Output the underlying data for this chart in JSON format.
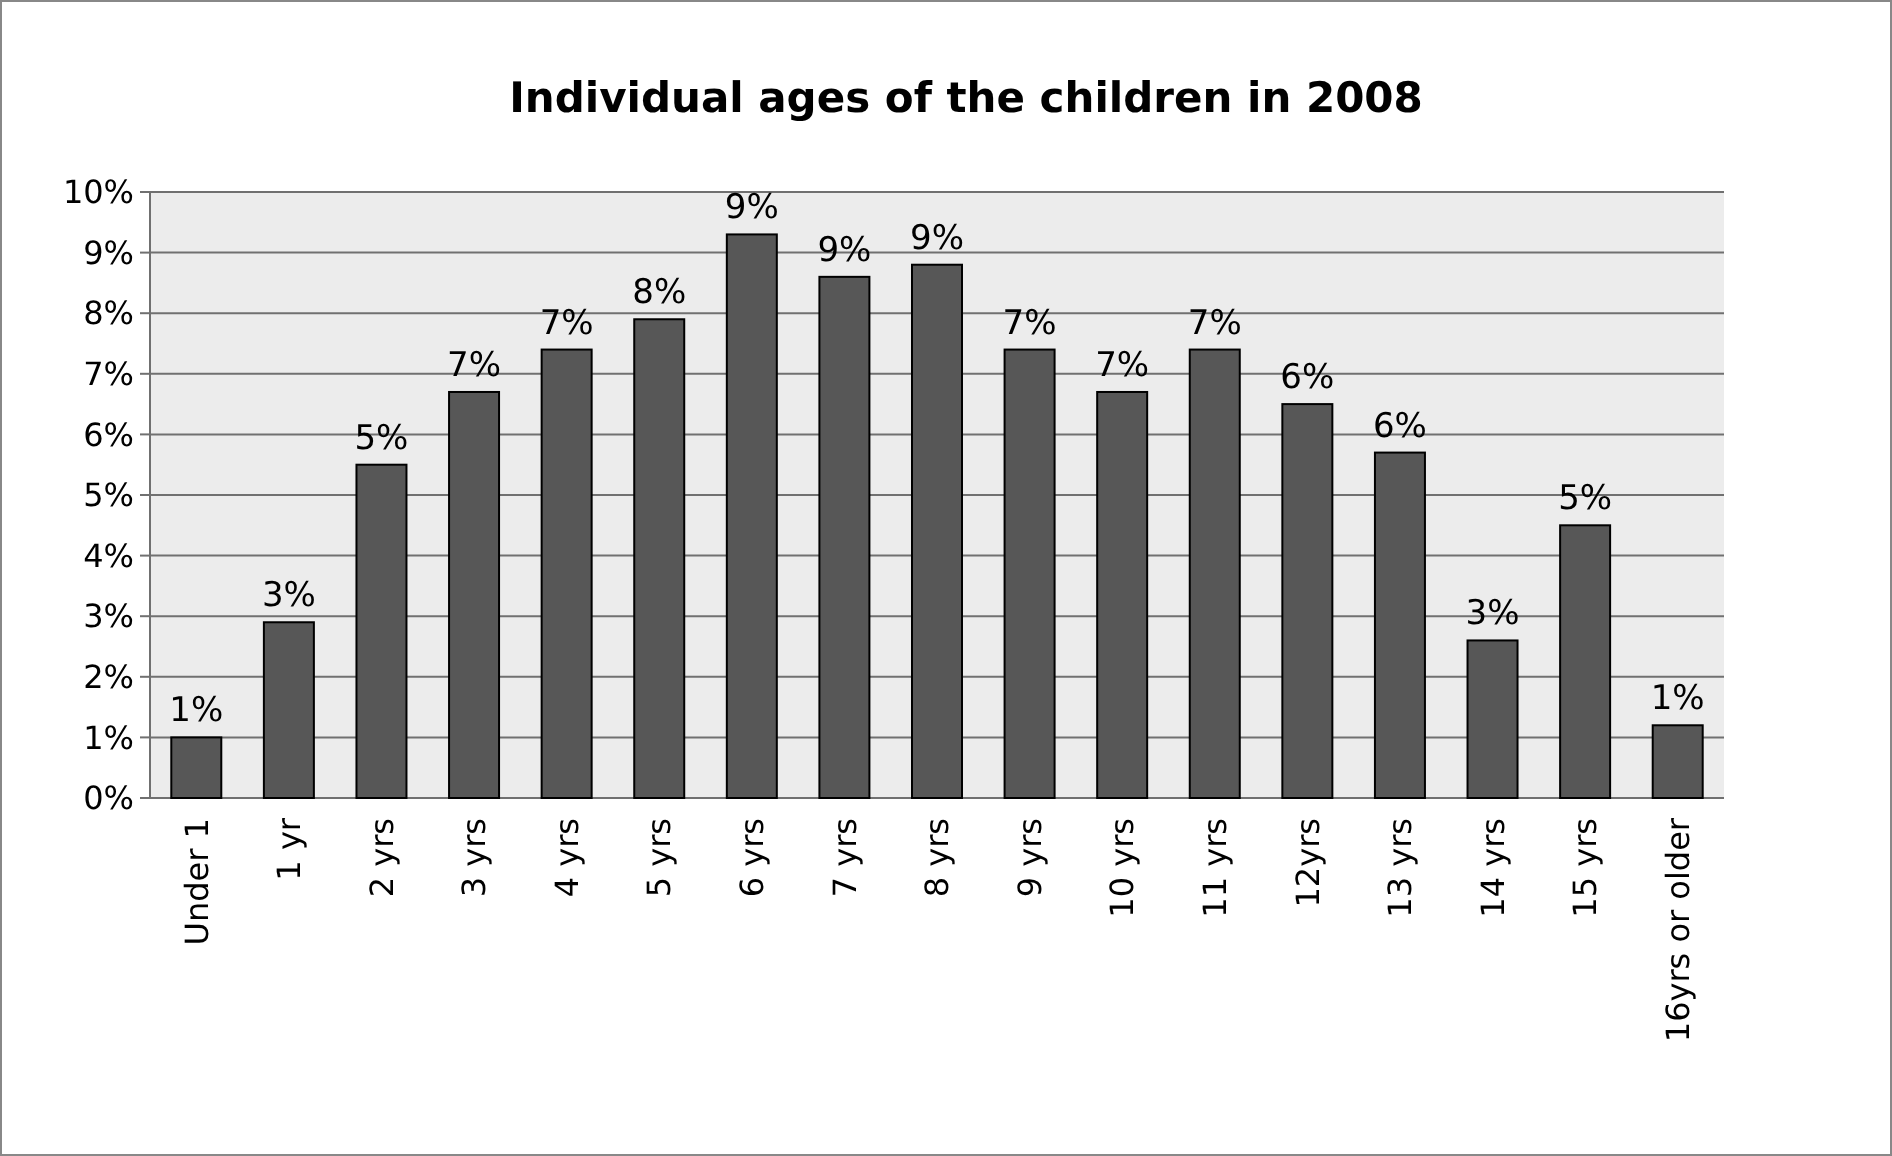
{
  "chart_data": {
    "type": "bar",
    "title": "Individual ages of the children in 2008",
    "categories": [
      "Under 1",
      "1 yr",
      "2 yrs",
      "3 yrs",
      "4 yrs",
      "5 yrs",
      "6 yrs",
      "7 yrs",
      "8 yrs",
      "9 yrs",
      "10 yrs",
      "11 yrs",
      "12yrs",
      "13 yrs",
      "14 yrs",
      "15 yrs",
      "16yrs or older"
    ],
    "values": [
      1.0,
      2.9,
      5.5,
      6.7,
      7.4,
      7.9,
      9.3,
      8.6,
      8.8,
      7.4,
      6.7,
      7.4,
      6.5,
      5.7,
      2.6,
      4.5,
      1.2
    ],
    "value_labels": [
      "1%",
      "3%",
      "5%",
      "7%",
      "7%",
      "8%",
      "9%",
      "9%",
      "9%",
      "7%",
      "7%",
      "7%",
      "6%",
      "6%",
      "3%",
      "5%",
      "1%"
    ],
    "color": "#575757",
    "ylim": [
      0,
      10
    ],
    "yticks": [
      {
        "value": 0,
        "label": "0%"
      },
      {
        "value": 1,
        "label": "1%"
      },
      {
        "value": 2,
        "label": "2%"
      },
      {
        "value": 3,
        "label": "3%"
      },
      {
        "value": 4,
        "label": "4%"
      },
      {
        "value": 5,
        "label": "5%"
      },
      {
        "value": 6,
        "label": "6%"
      },
      {
        "value": 7,
        "label": "7%"
      },
      {
        "value": 8,
        "label": "8%"
      },
      {
        "value": 9,
        "label": "9%"
      },
      {
        "value": 10,
        "label": "10%"
      }
    ],
    "grid": "y"
  }
}
